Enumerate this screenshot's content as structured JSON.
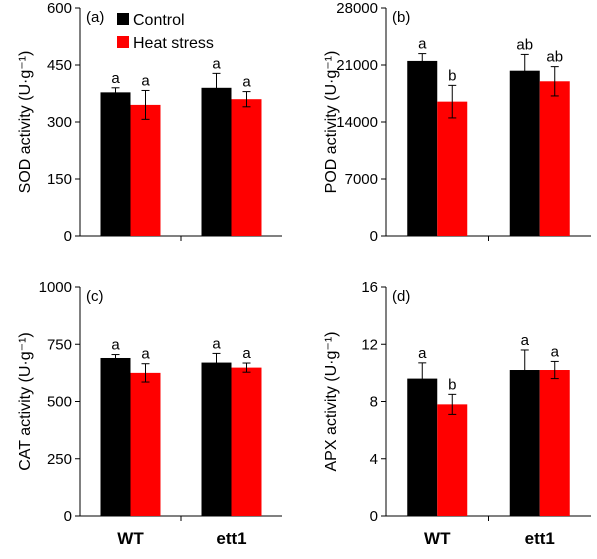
{
  "legend": {
    "items": [
      {
        "label": "Control",
        "color": "#000000"
      },
      {
        "label": "Heat stress",
        "color": "#ff0000"
      }
    ],
    "placement": "top-left inside panel (a)"
  },
  "chart_data": [
    {
      "type": "bar",
      "panel_label": "(a)",
      "ylabel": "SOD activity (U·g⁻¹)",
      "ylim": [
        0,
        600
      ],
      "yticks": [
        "0",
        "150",
        "300",
        "450",
        "600"
      ],
      "categories": [
        "WT",
        "ett1"
      ],
      "show_xlabels": false,
      "series": [
        {
          "name": "Control",
          "color": "#000000",
          "values": [
            378,
            390
          ],
          "errors": [
            12,
            38
          ],
          "letters": [
            "a",
            "a"
          ]
        },
        {
          "name": "Heat stress",
          "color": "#ff0000",
          "values": [
            345,
            360
          ],
          "errors": [
            38,
            20
          ],
          "letters": [
            "a",
            "a"
          ]
        }
      ]
    },
    {
      "type": "bar",
      "panel_label": "(b)",
      "ylabel": "POD activity (U·g⁻¹)",
      "ylim": [
        0,
        28000
      ],
      "yticks": [
        "0",
        "7000",
        "14000",
        "21000",
        "28000"
      ],
      "categories": [
        "WT",
        "ett1"
      ],
      "show_xlabels": false,
      "series": [
        {
          "name": "Control",
          "color": "#000000",
          "values": [
            21500,
            20300
          ],
          "errors": [
            900,
            2000
          ],
          "letters": [
            "a",
            "ab"
          ]
        },
        {
          "name": "Heat stress",
          "color": "#ff0000",
          "values": [
            16500,
            19000
          ],
          "errors": [
            2000,
            1800
          ],
          "letters": [
            "b",
            "ab"
          ]
        }
      ]
    },
    {
      "type": "bar",
      "panel_label": "(c)",
      "ylabel": "CAT activity (U·g⁻¹)",
      "ylim": [
        0,
        1000
      ],
      "yticks": [
        "0",
        "250",
        "500",
        "750",
        "1000"
      ],
      "categories": [
        "WT",
        "ett1"
      ],
      "show_xlabels": true,
      "series": [
        {
          "name": "Control",
          "color": "#000000",
          "values": [
            690,
            670
          ],
          "errors": [
            15,
            40
          ],
          "letters": [
            "a",
            "a"
          ]
        },
        {
          "name": "Heat stress",
          "color": "#ff0000",
          "values": [
            625,
            648
          ],
          "errors": [
            40,
            20
          ],
          "letters": [
            "a",
            "a"
          ]
        }
      ]
    },
    {
      "type": "bar",
      "panel_label": "(d)",
      "ylabel": "APX activity (U·g⁻¹)",
      "ylim": [
        0,
        16
      ],
      "yticks": [
        "0",
        "4",
        "8",
        "12",
        "16"
      ],
      "categories": [
        "WT",
        "ett1"
      ],
      "show_xlabels": true,
      "series": [
        {
          "name": "Control",
          "color": "#000000",
          "values": [
            9.6,
            10.2
          ],
          "errors": [
            1.1,
            1.4
          ],
          "letters": [
            "a",
            "a"
          ]
        },
        {
          "name": "Heat stress",
          "color": "#ff0000",
          "values": [
            7.8,
            10.2
          ],
          "errors": [
            0.7,
            0.6
          ],
          "letters": [
            "b",
            "a"
          ]
        }
      ]
    }
  ]
}
